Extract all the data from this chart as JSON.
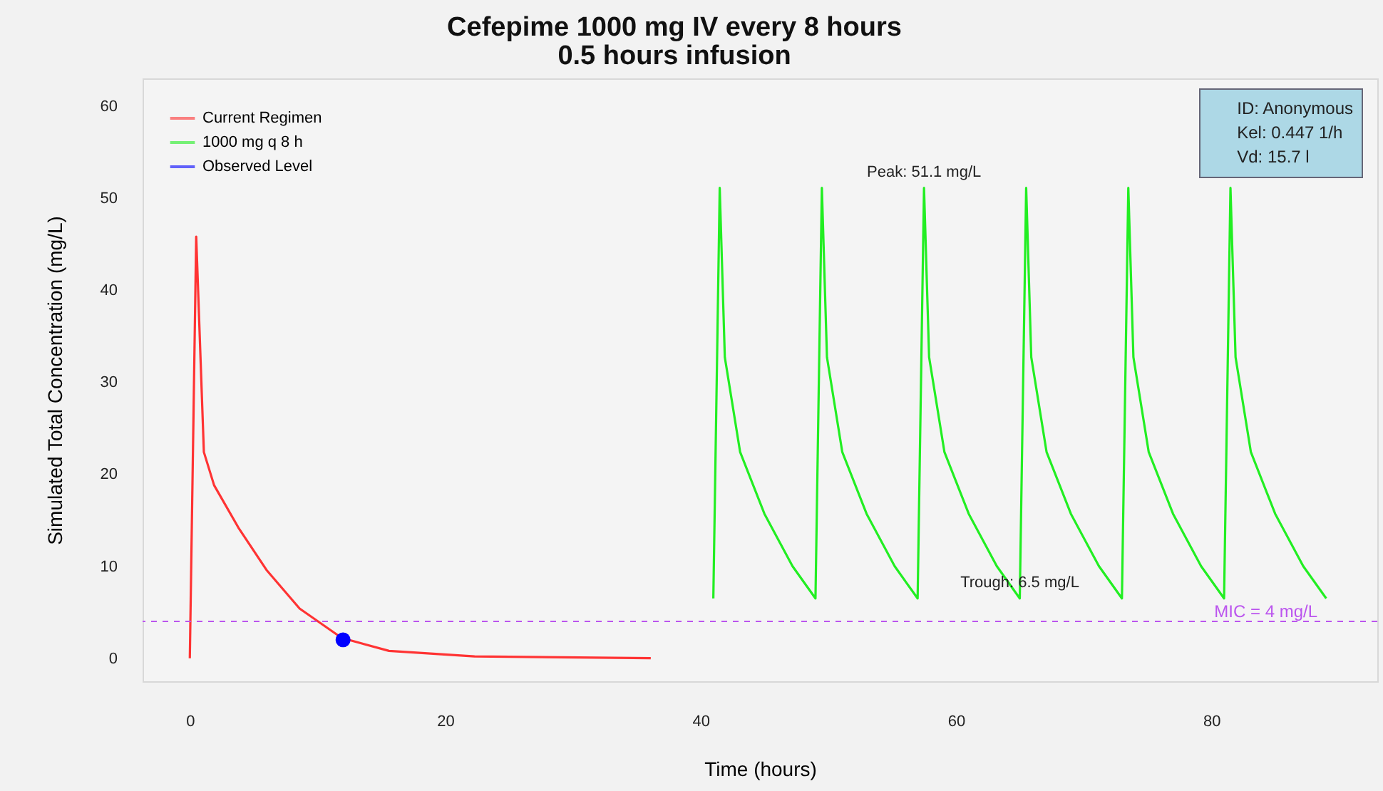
{
  "chart_data": {
    "type": "line",
    "title": "Cefepime 1000 mg IV every 8 hours",
    "subtitle": "0.5 hours infusion",
    "xlabel": "Time (hours)",
    "ylabel": "Simulated  Total Concentration (mg/L)",
    "xlim": [
      -3.7,
      93
    ],
    "ylim": [
      -2.5,
      63
    ],
    "xticks": [
      0,
      20,
      40,
      60,
      80
    ],
    "yticks": [
      0,
      10,
      20,
      30,
      40,
      50,
      60
    ],
    "grid": false,
    "legend": "top left",
    "series": [
      {
        "name": "Current Regimen",
        "type": "line",
        "color": "#ff3333",
        "x": [
          0,
          0.5,
          1.1,
          1.9,
          3.8,
          6,
          8.6,
          11.9,
          15.6,
          22.3,
          36.1
        ],
        "values": [
          0,
          45.8,
          22.4,
          18.8,
          14.2,
          9.6,
          5.4,
          2.2,
          0.8,
          0.2,
          0
        ]
      },
      {
        "name": "1000 mg q 8 h",
        "type": "line",
        "color": "#22ee22",
        "x": [
          41,
          41.5,
          41.9,
          43.1,
          45,
          47.2,
          49,
          49.5,
          49.9,
          51.1,
          53,
          55.2,
          57,
          57.5,
          57.9,
          59.1,
          61,
          63.2,
          65,
          65.5,
          65.9,
          67.1,
          69,
          71.2,
          73,
          73.5,
          73.9,
          75.1,
          77,
          79.2,
          81,
          81.5,
          81.9,
          83.1,
          85,
          87.2,
          89
        ],
        "values": [
          6.5,
          51.1,
          32.7,
          22.4,
          15.7,
          10,
          6.5,
          51.1,
          32.7,
          22.4,
          15.7,
          10,
          6.5,
          51.1,
          32.7,
          22.4,
          15.7,
          10,
          6.5,
          51.1,
          32.7,
          22.4,
          15.7,
          10,
          6.5,
          51.1,
          32.7,
          22.4,
          15.7,
          10,
          6.5,
          51.1,
          32.7,
          22.4,
          15.7,
          10,
          6.5
        ]
      },
      {
        "name": "Observed Level",
        "type": "scatter",
        "marker": "circle",
        "color": "#0000ff",
        "x": [
          12
        ],
        "values": [
          2
        ]
      }
    ],
    "ref_lines": [
      {
        "axis": "y",
        "value": 4,
        "label": "MIC = 4 mg/L",
        "color": "#bb55ee",
        "line_style": "dashed"
      }
    ],
    "annotations": [
      {
        "text": "Peak: 51.1 mg/L",
        "x": 57.5,
        "y": 51.1
      },
      {
        "text": "Trough: 6.5 mg/L",
        "x": 65,
        "y": 6.5
      },
      "ID: Anonymous",
      "Kel: 0.447 1/h",
      "Vd: 15.7 l"
    ]
  }
}
